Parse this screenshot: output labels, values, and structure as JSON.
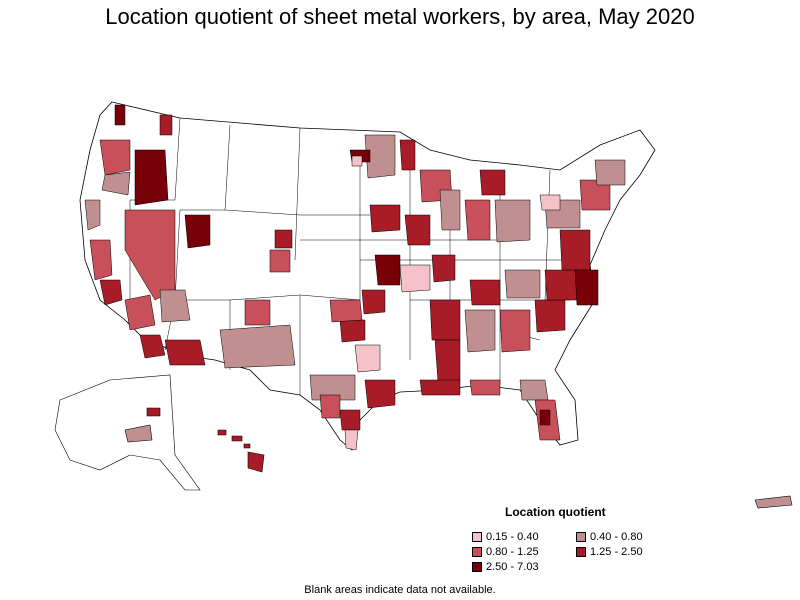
{
  "title": "Location quotient of sheet metal workers, by area, May 2020",
  "legend": {
    "title": "Location quotient",
    "items": [
      {
        "label": "0.15 - 0.40",
        "color": "#f4c2c8"
      },
      {
        "label": "0.40 - 0.80",
        "color": "#c09090"
      },
      {
        "label": "0.80 - 1.25",
        "color": "#c8505a"
      },
      {
        "label": "1.25 - 2.50",
        "color": "#a81c28"
      },
      {
        "label": "2.50 - 7.03",
        "color": "#780008"
      }
    ]
  },
  "footnote": "Blank areas indicate data not available.",
  "colors": {
    "no_data": "#ffffff",
    "boundary": "#000000"
  }
}
